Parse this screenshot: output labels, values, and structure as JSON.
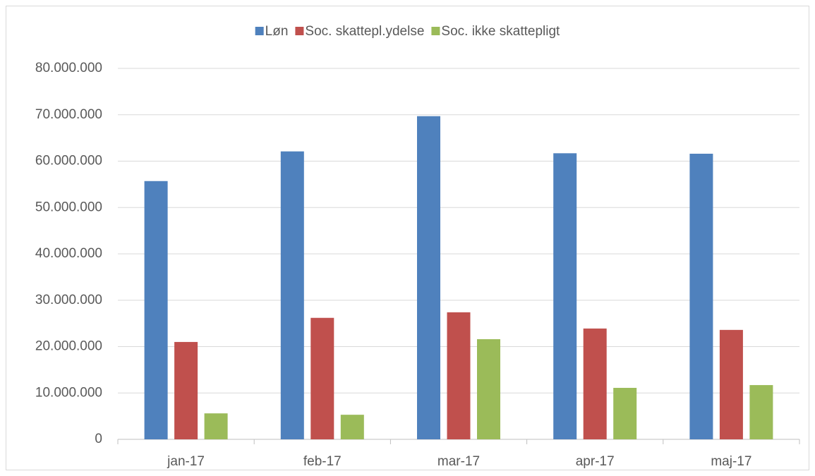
{
  "chart_data": {
    "type": "bar",
    "categories": [
      "jan-17",
      "feb-17",
      "mar-17",
      "apr-17",
      "maj-17"
    ],
    "series": [
      {
        "name": "Løn",
        "color": "#4f81bd",
        "values": [
          55700000,
          62100000,
          69700000,
          61700000,
          61600000
        ]
      },
      {
        "name": "Soc. skattepl.ydelse",
        "color": "#c0504d",
        "values": [
          21000000,
          26200000,
          27400000,
          23900000,
          23600000
        ]
      },
      {
        "name": "Soc. ikke skattepligt",
        "color": "#9bbb59",
        "values": [
          5600000,
          5300000,
          21600000,
          11100000,
          11700000
        ]
      }
    ],
    "ylim": [
      0,
      80000000
    ],
    "yticks": [
      0,
      {
        "value": 10000000,
        "label": "10.000.000"
      },
      {
        "value": 20000000,
        "label": "20.000.000"
      },
      {
        "value": 30000000,
        "label": "30.000.000"
      },
      {
        "value": 40000000,
        "label": "40.000.000"
      },
      {
        "value": 50000000,
        "label": "50.000.000"
      },
      {
        "value": 60000000,
        "label": "60.000.000"
      },
      {
        "value": 70000000,
        "label": "70.000.000"
      },
      {
        "value": 80000000,
        "label": "80.000.000"
      }
    ],
    "grid": true,
    "legend": "top"
  }
}
